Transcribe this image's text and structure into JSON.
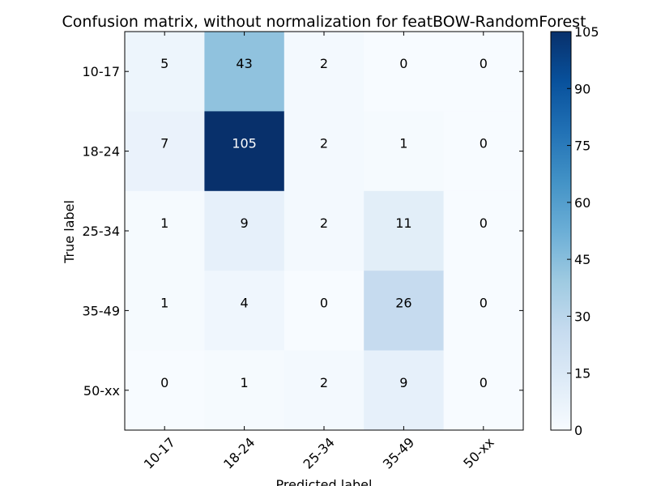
{
  "chart_data": {
    "type": "heatmap",
    "title": "Confusion matrix, without normalization for featBOW-RandomForest",
    "xlabel": "Predicted label",
    "ylabel": "True label",
    "x_categories": [
      "10-17",
      "18-24",
      "25-34",
      "35-49",
      "50-xx"
    ],
    "y_categories": [
      "10-17",
      "18-24",
      "25-34",
      "35-49",
      "50-xx"
    ],
    "values": [
      [
        5,
        43,
        2,
        0,
        0
      ],
      [
        7,
        105,
        2,
        1,
        0
      ],
      [
        1,
        9,
        2,
        11,
        0
      ],
      [
        1,
        4,
        0,
        26,
        0
      ],
      [
        0,
        1,
        2,
        9,
        0
      ]
    ],
    "colormap": "Blues",
    "colorbar": {
      "min": 0,
      "max": 105,
      "ticks": [
        0,
        15,
        30,
        45,
        60,
        75,
        90,
        105
      ]
    },
    "grid": false
  }
}
